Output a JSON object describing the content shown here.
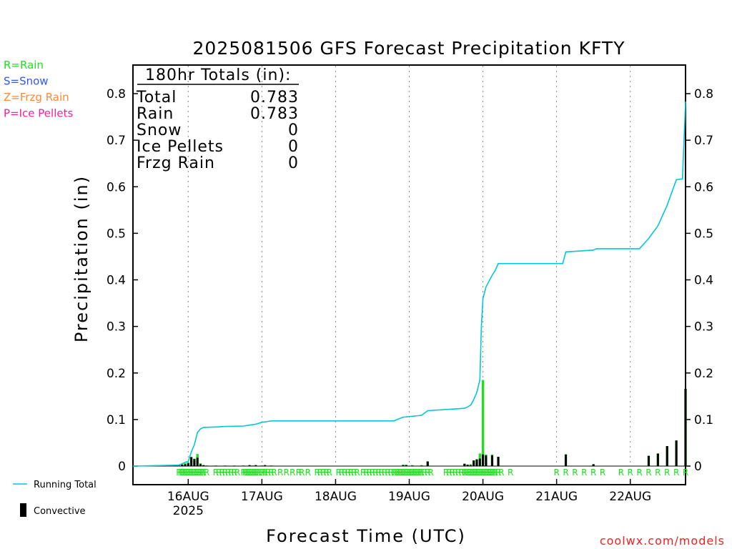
{
  "chart_data": {
    "type": "bar",
    "title": "2025081506 GFS Forecast Precipitation KFTY",
    "xlabel": "Forecast Time (UTC)",
    "ylabel": "Precipitation (in)",
    "ylim": [
      0,
      0.8
    ],
    "y_ticks": [
      "0",
      "0.1",
      "0.2",
      "0.3",
      "0.4",
      "0.5",
      "0.6",
      "0.7",
      "0.8"
    ],
    "x_range_hours": [
      0,
      180
    ],
    "x_ticks": [
      {
        "hour": 18,
        "label": "16AUG",
        "sub": "2025"
      },
      {
        "hour": 42,
        "label": "17AUG",
        "sub": ""
      },
      {
        "hour": 66,
        "label": "18AUG",
        "sub": ""
      },
      {
        "hour": 90,
        "label": "19AUG",
        "sub": ""
      },
      {
        "hour": 114,
        "label": "20AUG",
        "sub": ""
      },
      {
        "hour": 138,
        "label": "21AUG",
        "sub": ""
      },
      {
        "hour": 162,
        "label": "22AUG",
        "sub": ""
      }
    ],
    "legend": [
      {
        "text": "R=Rain",
        "color": "#22dd22"
      },
      {
        "text": "S=Snow",
        "color": "#3355ff"
      },
      {
        "text": "Z=Frzg Rain",
        "color": "#ff8833"
      },
      {
        "text": "P=Ice Pellets",
        "color": "#ee2299"
      }
    ],
    "series_legend": [
      {
        "text": "Running Total",
        "color": "#00c8d8",
        "kind": "line"
      },
      {
        "text": "Convective",
        "color": "#000000",
        "kind": "bar"
      }
    ],
    "totals": {
      "header": "180hr Totals (in):",
      "rows": [
        {
          "label": "Total",
          "value": "0.783"
        },
        {
          "label": "Rain",
          "value": "0.783"
        },
        {
          "label": "Snow",
          "value": "0"
        },
        {
          "label": "Ice Pellets",
          "value": "0"
        },
        {
          "label": "Frzg Rain",
          "value": "0"
        }
      ]
    },
    "bars": [
      {
        "hour": 15,
        "precip": 0.002,
        "convective": 0.002
      },
      {
        "hour": 16,
        "precip": 0.005,
        "convective": 0.003
      },
      {
        "hour": 17,
        "precip": 0.006,
        "convective": 0.004
      },
      {
        "hour": 18,
        "precip": 0.008,
        "convective": 0.006
      },
      {
        "hour": 19,
        "precip": 0.02,
        "convective": 0.019
      },
      {
        "hour": 20,
        "precip": 0.016,
        "convective": 0.015
      },
      {
        "hour": 21,
        "precip": 0.026,
        "convective": 0.018
      },
      {
        "hour": 22,
        "precip": 0.006,
        "convective": 0.004
      },
      {
        "hour": 23,
        "precip": 0.002,
        "convective": 0.002
      },
      {
        "hour": 24,
        "precip": 0.001,
        "convective": 0.001
      },
      {
        "hour": 27,
        "precip": 0.001,
        "convective": 0.001
      },
      {
        "hour": 30,
        "precip": 0.001,
        "convective": 0.001
      },
      {
        "hour": 33,
        "precip": 0.001,
        "convective": 0.001
      },
      {
        "hour": 36,
        "precip": 0.001,
        "convective": 0.001
      },
      {
        "hour": 38,
        "precip": 0.002,
        "convective": 0.002
      },
      {
        "hour": 39,
        "precip": 0.001,
        "convective": 0.001
      },
      {
        "hour": 40,
        "precip": 0.002,
        "convective": 0.002
      },
      {
        "hour": 42,
        "precip": 0.001,
        "convective": 0.001
      },
      {
        "hour": 43,
        "precip": 0.002,
        "convective": 0.002
      },
      {
        "hour": 45,
        "precip": 0.001,
        "convective": 0.001
      },
      {
        "hour": 88,
        "precip": 0.003,
        "convective": 0.002
      },
      {
        "hour": 89,
        "precip": 0.003,
        "convective": 0.002
      },
      {
        "hour": 91,
        "precip": 0.002,
        "convective": 0.001
      },
      {
        "hour": 94,
        "precip": 0.002,
        "convective": 0.001
      },
      {
        "hour": 96,
        "precip": 0.01,
        "convective": 0.01
      },
      {
        "hour": 108,
        "precip": 0.005,
        "convective": 0.005
      },
      {
        "hour": 109,
        "precip": 0.003,
        "convective": 0.003
      },
      {
        "hour": 110,
        "precip": 0.004,
        "convective": 0.002
      },
      {
        "hour": 111,
        "precip": 0.012,
        "convective": 0.012
      },
      {
        "hour": 112,
        "precip": 0.015,
        "convective": 0.014
      },
      {
        "hour": 113,
        "precip": 0.027,
        "convective": 0.016
      },
      {
        "hour": 114,
        "precip": 0.185,
        "convective": 0.025
      },
      {
        "hour": 115,
        "precip": 0.025,
        "convective": 0.023
      },
      {
        "hour": 117,
        "precip": 0.025,
        "convective": 0.023
      },
      {
        "hour": 119,
        "precip": 0.02,
        "convective": 0.02
      },
      {
        "hour": 141,
        "precip": 0.025,
        "convective": 0.025
      },
      {
        "hour": 150,
        "precip": 0.004,
        "convective": 0.004
      },
      {
        "hour": 168,
        "precip": 0.022,
        "convective": 0.022
      },
      {
        "hour": 171,
        "precip": 0.027,
        "convective": 0.027
      },
      {
        "hour": 174,
        "precip": 0.043,
        "convective": 0.043
      },
      {
        "hour": 177,
        "precip": 0.055,
        "convective": 0.055
      },
      {
        "hour": 180,
        "precip": 0.166,
        "convective": 0.166
      }
    ],
    "running_total": [
      [
        0,
        0
      ],
      [
        15,
        0.002
      ],
      [
        16,
        0.005
      ],
      [
        17,
        0.008
      ],
      [
        18,
        0.01
      ],
      [
        19,
        0.03
      ],
      [
        20,
        0.046
      ],
      [
        21,
        0.072
      ],
      [
        22,
        0.08
      ],
      [
        23,
        0.083
      ],
      [
        27,
        0.084
      ],
      [
        30,
        0.085
      ],
      [
        36,
        0.086
      ],
      [
        38,
        0.088
      ],
      [
        40,
        0.09
      ],
      [
        42,
        0.094
      ],
      [
        44,
        0.096
      ],
      [
        45,
        0.097
      ],
      [
        85,
        0.097
      ],
      [
        86,
        0.1
      ],
      [
        88,
        0.105
      ],
      [
        91,
        0.107
      ],
      [
        94,
        0.109
      ],
      [
        96,
        0.119
      ],
      [
        108,
        0.124
      ],
      [
        109,
        0.127
      ],
      [
        110,
        0.131
      ],
      [
        111,
        0.143
      ],
      [
        112,
        0.158
      ],
      [
        113,
        0.185
      ],
      [
        113.5,
        0.3
      ],
      [
        114,
        0.36
      ],
      [
        115,
        0.385
      ],
      [
        117,
        0.41
      ],
      [
        118,
        0.42
      ],
      [
        119,
        0.435
      ],
      [
        140,
        0.435
      ],
      [
        141,
        0.46
      ],
      [
        150,
        0.464
      ],
      [
        151,
        0.467
      ],
      [
        165,
        0.467
      ],
      [
        168,
        0.489
      ],
      [
        171,
        0.516
      ],
      [
        174,
        0.56
      ],
      [
        177,
        0.615
      ],
      [
        179,
        0.617
      ],
      [
        180,
        0.783
      ]
    ],
    "type_marks": {
      "symbol": "R",
      "hours": [
        15,
        15.5,
        16,
        16.5,
        17,
        17.5,
        18,
        18.5,
        19,
        19.5,
        20,
        20.5,
        21,
        21.5,
        22,
        22.5,
        23,
        24,
        27,
        28,
        29,
        30,
        31,
        32,
        33,
        34,
        36,
        36.5,
        37,
        37.5,
        38,
        38.5,
        39,
        39.5,
        40,
        40.5,
        41,
        42,
        42.5,
        43,
        44,
        45,
        46,
        48,
        50,
        52,
        54,
        55,
        57,
        60,
        61,
        62,
        63,
        64,
        67,
        68,
        69,
        70,
        71,
        72,
        73,
        75,
        76,
        77,
        78,
        79,
        80,
        81,
        82,
        83,
        84,
        85,
        85.5,
        86,
        86.5,
        87,
        87.5,
        88,
        88.5,
        89,
        89.5,
        90,
        90.5,
        91,
        91.5,
        92,
        92.5,
        93,
        93.5,
        94,
        95,
        96,
        97,
        102,
        103,
        104,
        105,
        106,
        107,
        108,
        108.5,
        109,
        109.5,
        110,
        110.5,
        111,
        111.5,
        112,
        112.5,
        113,
        113.5,
        114,
        114.5,
        115,
        115.5,
        116,
        116.5,
        117,
        117.5,
        118,
        119,
        120,
        123,
        138,
        141,
        144,
        147,
        150,
        153,
        159,
        162,
        165,
        168,
        171,
        174,
        177,
        180
      ]
    }
  },
  "footer": {
    "credit": "coolwx.com/models"
  }
}
